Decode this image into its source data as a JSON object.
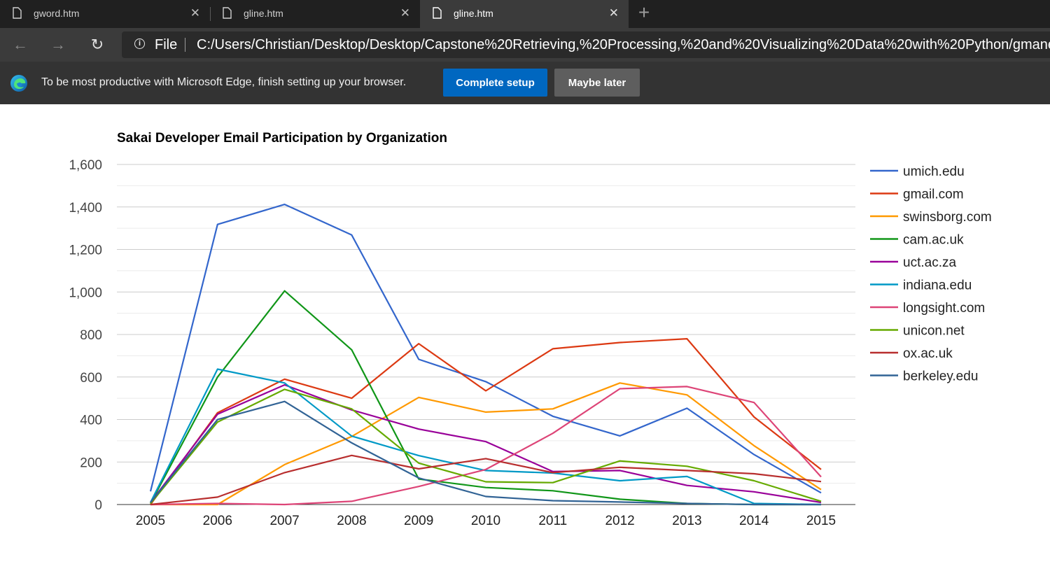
{
  "browser": {
    "tabs": [
      {
        "title": "gword.htm",
        "active": false
      },
      {
        "title": "gline.htm",
        "active": false
      },
      {
        "title": "gline.htm",
        "active": true
      }
    ],
    "address": {
      "scheme": "File",
      "url": "C:/Users/Christian/Desktop/Desktop/Capstone%20Retrieving,%20Processing,%20and%20Visualizing%20Data%20with%20Python/gmane/gline.htm"
    },
    "infobar": {
      "message": "To be most productive with Microsoft Edge, finish setting up your browser.",
      "primary_button": "Complete setup",
      "secondary_button": "Maybe later"
    },
    "colors": {
      "tabstrip_bg": "#202020",
      "toolbar_bg": "#3b3b3b",
      "infobar_bg": "#333333",
      "primary_button": "#0067c0",
      "secondary_button": "#5e5e5e"
    },
    "icons": [
      "document-icon",
      "close-icon",
      "plus-icon",
      "back-arrow-icon",
      "forward-arrow-icon",
      "refresh-icon",
      "info-icon",
      "edge-logo-icon"
    ]
  },
  "chart_data": {
    "type": "line",
    "title": "Sakai Developer Email Participation by Organization",
    "xlabel": "",
    "ylabel": "",
    "x": [
      "2005",
      "2006",
      "2007",
      "2008",
      "2009",
      "2010",
      "2011",
      "2012",
      "2013",
      "2014",
      "2015"
    ],
    "ylim": [
      0,
      1600
    ],
    "yticks": [
      0,
      200,
      400,
      600,
      800,
      1000,
      1200,
      1400,
      1600
    ],
    "ytick_labels": [
      "0",
      "200",
      "400",
      "600",
      "800",
      "1,000",
      "1,200",
      "1,400",
      "1,600"
    ],
    "grid": true,
    "legend_position": "right",
    "series": [
      {
        "name": "umich.edu",
        "color": "#3366cc",
        "values": [
          62,
          1318,
          1412,
          1268,
          683,
          578,
          415,
          323,
          453,
          235,
          55
        ]
      },
      {
        "name": "gmail.com",
        "color": "#dc3912",
        "values": [
          0,
          432,
          590,
          500,
          757,
          535,
          733,
          762,
          780,
          412,
          165
        ]
      },
      {
        "name": "swinsborg.com",
        "color": "#ff9900",
        "values": [
          0,
          0,
          188,
          320,
          504,
          435,
          450,
          572,
          516,
          277,
          70
        ]
      },
      {
        "name": "cam.ac.uk",
        "color": "#109618",
        "values": [
          5,
          600,
          1005,
          728,
          120,
          80,
          65,
          25,
          5,
          0,
          0
        ]
      },
      {
        "name": "uct.ac.za",
        "color": "#990099",
        "values": [
          10,
          425,
          563,
          445,
          355,
          296,
          155,
          160,
          90,
          60,
          10
        ]
      },
      {
        "name": "indiana.edu",
        "color": "#0099c6",
        "values": [
          10,
          637,
          572,
          322,
          230,
          160,
          148,
          112,
          132,
          5,
          0
        ]
      },
      {
        "name": "longsight.com",
        "color": "#dd4477",
        "values": [
          0,
          5,
          0,
          15,
          85,
          165,
          335,
          545,
          555,
          480,
          130
        ]
      },
      {
        "name": "unicon.net",
        "color": "#66aa00",
        "values": [
          5,
          388,
          542,
          450,
          195,
          107,
          103,
          205,
          180,
          112,
          15
        ]
      },
      {
        "name": "ox.ac.uk",
        "color": "#b82e2e",
        "values": [
          0,
          35,
          150,
          231,
          168,
          216,
          150,
          175,
          160,
          145,
          108
        ]
      },
      {
        "name": "berkeley.edu",
        "color": "#316395",
        "values": [
          10,
          400,
          485,
          290,
          125,
          38,
          18,
          12,
          5,
          0,
          0
        ]
      }
    ]
  }
}
